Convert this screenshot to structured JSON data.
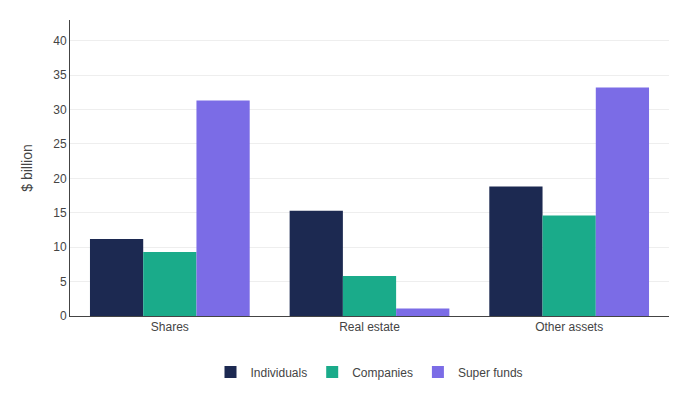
{
  "chart_data": {
    "type": "bar",
    "categories": [
      "Shares",
      "Real estate",
      "Other assets"
    ],
    "series": [
      {
        "name": "Individuals",
        "color": "#1c2951",
        "values": [
          11.2,
          15.3,
          18.8
        ]
      },
      {
        "name": "Companies",
        "color": "#1aab8a",
        "values": [
          9.3,
          5.8,
          14.6
        ]
      },
      {
        "name": "Super funds",
        "color": "#7b6ce6",
        "values": [
          31.3,
          1.1,
          33.2
        ]
      }
    ],
    "ylabel": "$ billion",
    "ylim": [
      0,
      43
    ],
    "yticks": [
      0,
      5,
      10,
      15,
      20,
      25,
      30,
      35,
      40
    ],
    "grid": true,
    "legend": "bottom"
  }
}
